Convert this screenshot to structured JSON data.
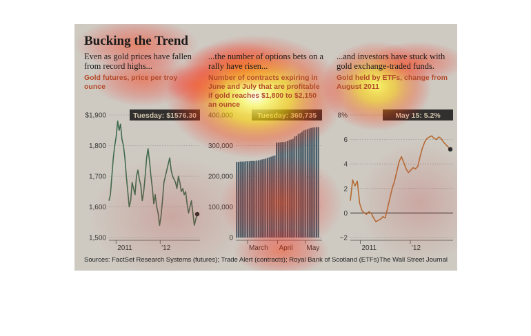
{
  "headline": "Bucking the Trend",
  "panels_text": [
    {
      "lead": "Even as gold prices have fallen from record highs...",
      "sub": "Gold futures, price per troy ounce"
    },
    {
      "lead": "...the number of options bets on a rally have risen...",
      "sub": "Number of contracts expiring in June and July that are profitable if gold reaches $1,800 to $2,150 an ounce"
    },
    {
      "lead": "...and investors have stuck with gold exchange-traded funds.",
      "sub": "Gold held by ETFs, change from August 2011"
    }
  ],
  "footer": {
    "sources": "Sources: FactSet Research Systems (futures); Trade Alert (contracts); Royal Bank of Scotland (ETFs)",
    "publisher": "The Wall Street Journal"
  },
  "colors": {
    "gold_line": "#2e6a45",
    "options_bar": "#2e4f63",
    "etf_line": "#d06a1f",
    "callout_bg": "#1a1a1a",
    "panel_bg": "#f3efe6"
  },
  "chart_data": [
    {
      "type": "line",
      "title": "Gold futures, price per troy ounce",
      "xlabel": "",
      "ylabel": "",
      "ylim": [
        1500,
        1900
      ],
      "yticks": [
        1500,
        1600,
        1700,
        1800,
        1900
      ],
      "ytick_labels": [
        "1,500",
        "1,600",
        "1,700",
        "1,800",
        "$1,900"
      ],
      "xticks": [
        {
          "label": "2011",
          "x": 0.08
        },
        {
          "label": "'12",
          "x": 0.58
        }
      ],
      "callout": "Tuesday: $1576.30",
      "end_value": 1576.3,
      "grid": true,
      "series": [
        {
          "values": [
            1620,
            1640,
            1700,
            1760,
            1800,
            1830,
            1880,
            1850,
            1870,
            1820,
            1800,
            1760,
            1700,
            1650,
            1600,
            1620,
            1680,
            1660,
            1640,
            1700,
            1720,
            1690,
            1670,
            1620,
            1650,
            1700,
            1760,
            1790,
            1750,
            1700,
            1660,
            1610,
            1640,
            1600,
            1580,
            1540,
            1570,
            1620,
            1680,
            1700,
            1720,
            1740,
            1760,
            1720,
            1700,
            1690,
            1680,
            1660,
            1700,
            1680,
            1650,
            1660,
            1640,
            1650,
            1610,
            1580,
            1600,
            1620,
            1580,
            1540,
            1560,
            1576.3
          ]
        }
      ]
    },
    {
      "type": "bar",
      "title": "Number of contracts expiring in June and July that are profitable if gold reaches $1,800 to $2,150 an ounce",
      "xlabel": "",
      "ylabel": "",
      "ylim": [
        0,
        400000
      ],
      "yticks": [
        0,
        100000,
        200000,
        300000,
        400000
      ],
      "ytick_labels": [
        "0",
        "100,000",
        "200,000",
        "300,000",
        "400,000"
      ],
      "xticks": [
        {
          "label": "March",
          "x": 0.14
        },
        {
          "label": "April",
          "x": 0.5
        },
        {
          "label": "May",
          "x": 0.83
        }
      ],
      "callout": "Tuesday: 360,735",
      "end_value": 360735,
      "grid": true,
      "series": [
        {
          "values": [
            247000,
            247000,
            248000,
            248000,
            248000,
            249000,
            249000,
            249000,
            250000,
            250000,
            250000,
            251000,
            252000,
            253000,
            255000,
            256000,
            258000,
            260000,
            262000,
            264000,
            266000,
            268000,
            310000,
            310000,
            311000,
            312000,
            312000,
            313000,
            315000,
            318000,
            320000,
            322000,
            330000,
            332000,
            338000,
            341000,
            345000,
            350000,
            352000,
            354000,
            356000,
            358000,
            359000,
            359500,
            360000,
            360735
          ]
        }
      ]
    },
    {
      "type": "line",
      "title": "Gold held by ETFs, change from August 2011",
      "xlabel": "",
      "ylabel": "",
      "ylim": [
        -2,
        8
      ],
      "yticks": [
        -2,
        0,
        2,
        4,
        6,
        8
      ],
      "ytick_labels": [
        "−2",
        "0",
        "2",
        "4",
        "6",
        "8%"
      ],
      "xticks": [
        {
          "label": "2011",
          "x": 0.1
        },
        {
          "label": "'12",
          "x": 0.6
        }
      ],
      "callout": "May 15: 5.2%",
      "end_value": 5.2,
      "grid": true,
      "series": [
        {
          "values": [
            1.0,
            2.7,
            2.2,
            2.6,
            0.8,
            0.2,
            0.0,
            -0.1,
            0.1,
            0.0,
            -0.4,
            -0.7,
            -0.6,
            -0.5,
            -0.3,
            -0.4,
            0.4,
            1.2,
            2.0,
            2.6,
            3.4,
            4.2,
            4.6,
            4.1,
            3.6,
            3.3,
            3.5,
            3.7,
            3.6,
            3.8,
            4.6,
            5.3,
            5.8,
            6.1,
            6.2,
            6.3,
            6.1,
            6.0,
            6.2,
            6.1,
            5.8,
            5.6,
            5.4,
            5.2
          ]
        }
      ]
    }
  ]
}
